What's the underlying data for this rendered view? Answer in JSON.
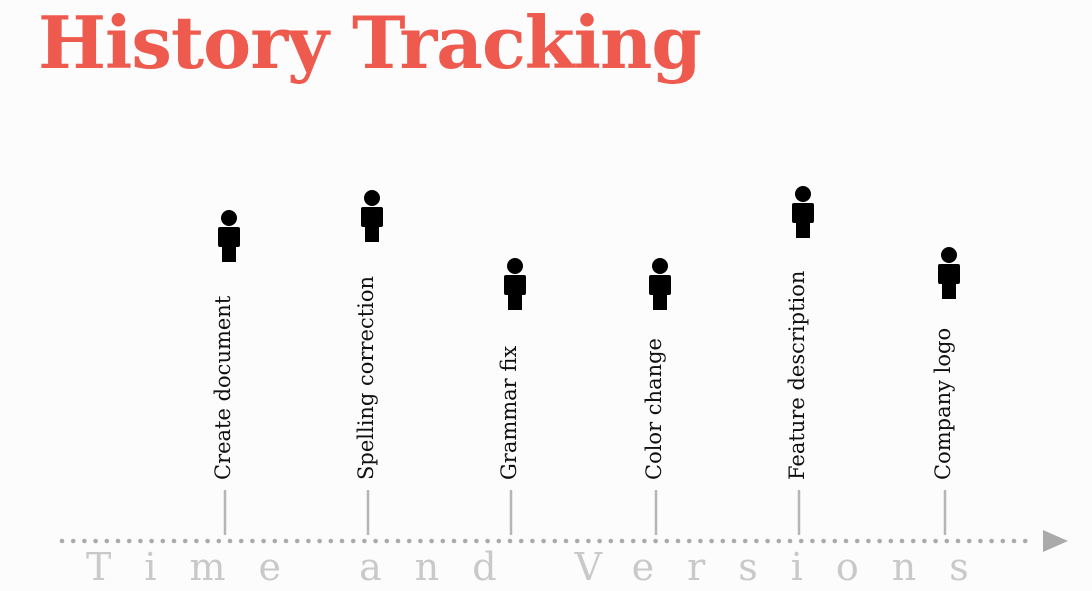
{
  "title": "History Tracking",
  "axis_label": "Time and Versions",
  "colors": {
    "title": "#ee5a4e",
    "axis": "#aaaaaa",
    "stem": "#b5b5b5",
    "person": "#000000"
  },
  "events": [
    {
      "label": "Create document",
      "icon": "person-icon"
    },
    {
      "label": "Spelling correction",
      "icon": "person-icon"
    },
    {
      "label": "Grammar fix",
      "icon": "person-icon"
    },
    {
      "label": "Color change",
      "icon": "person-icon"
    },
    {
      "label": "Feature description",
      "icon": "person-icon"
    },
    {
      "label": "Company logo",
      "icon": "person-icon"
    }
  ]
}
